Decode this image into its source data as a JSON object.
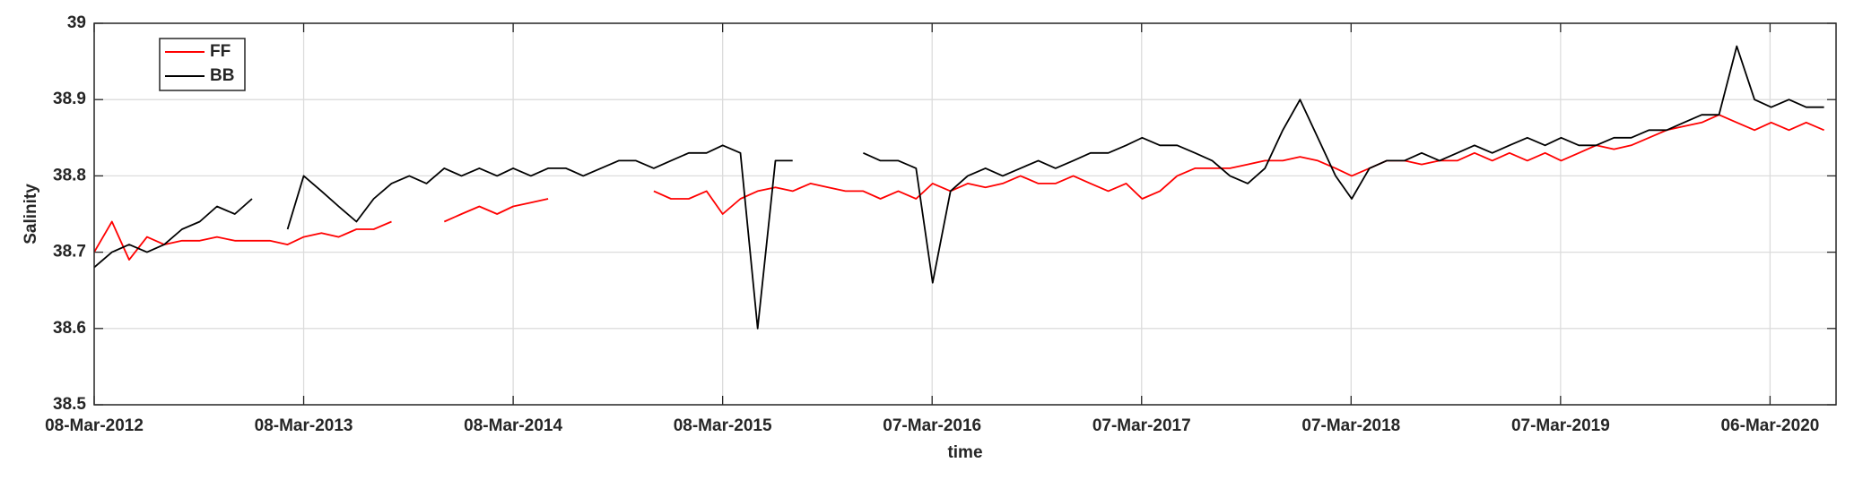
{
  "chart_data": {
    "type": "line",
    "xlabel": "time",
    "ylabel": "Salinity",
    "xlim": [
      "2012-03-08",
      "2020-06-29"
    ],
    "ylim": [
      38.5,
      39
    ],
    "xticks": [
      {
        "value": "2012-03-08",
        "label": "08-Mar-2012"
      },
      {
        "value": "2013-03-08",
        "label": "08-Mar-2013"
      },
      {
        "value": "2014-03-08",
        "label": "08-Mar-2014"
      },
      {
        "value": "2015-03-08",
        "label": "08-Mar-2015"
      },
      {
        "value": "2016-03-07",
        "label": "07-Mar-2016"
      },
      {
        "value": "2017-03-07",
        "label": "07-Mar-2017"
      },
      {
        "value": "2018-03-07",
        "label": "07-Mar-2018"
      },
      {
        "value": "2019-03-07",
        "label": "07-Mar-2019"
      },
      {
        "value": "2020-03-06",
        "label": "06-Mar-2020"
      }
    ],
    "yticks": [
      38.5,
      38.6,
      38.7,
      38.8,
      38.9,
      39
    ],
    "grid": true,
    "legend": "upper left",
    "x": [
      "2012-03-08",
      "2012-04-08",
      "2012-05-08",
      "2012-06-08",
      "2012-07-08",
      "2012-08-08",
      "2012-09-08",
      "2012-10-08",
      "2012-11-08",
      "2012-12-08",
      "2013-01-08",
      "2013-02-08",
      "2013-03-08",
      "2013-04-08",
      "2013-05-08",
      "2013-06-08",
      "2013-07-08",
      "2013-08-08",
      "2013-09-08",
      "2013-10-08",
      "2013-11-08",
      "2013-12-08",
      "2014-01-08",
      "2014-02-08",
      "2014-03-08",
      "2014-04-08",
      "2014-05-08",
      "2014-06-08",
      "2014-07-08",
      "2014-08-08",
      "2014-09-08",
      "2014-10-08",
      "2014-11-08",
      "2014-12-08",
      "2015-01-08",
      "2015-02-08",
      "2015-03-08",
      "2015-04-08",
      "2015-05-08",
      "2015-06-08",
      "2015-07-08",
      "2015-08-08",
      "2015-09-08",
      "2015-10-08",
      "2015-11-08",
      "2015-12-08",
      "2016-01-08",
      "2016-02-08",
      "2016-03-08",
      "2016-04-08",
      "2016-05-08",
      "2016-06-08",
      "2016-07-08",
      "2016-08-08",
      "2016-09-08",
      "2016-10-08",
      "2016-11-08",
      "2016-12-08",
      "2017-01-08",
      "2017-02-08",
      "2017-03-08",
      "2017-04-08",
      "2017-05-08",
      "2017-06-08",
      "2017-07-08",
      "2017-08-08",
      "2017-09-08",
      "2017-10-08",
      "2017-11-08",
      "2017-12-08",
      "2018-01-08",
      "2018-02-08",
      "2018-03-08",
      "2018-04-08",
      "2018-05-08",
      "2018-06-08",
      "2018-07-08",
      "2018-08-08",
      "2018-09-08",
      "2018-10-08",
      "2018-11-08",
      "2018-12-08",
      "2019-01-08",
      "2019-02-08",
      "2019-03-08",
      "2019-04-08",
      "2019-05-08",
      "2019-06-08",
      "2019-07-08",
      "2019-08-08",
      "2019-09-08",
      "2019-10-08",
      "2019-11-08",
      "2019-12-08",
      "2020-01-08",
      "2020-02-08",
      "2020-03-08",
      "2020-04-08",
      "2020-05-08",
      "2020-06-08"
    ],
    "series": [
      {
        "name": "FF",
        "color": "#ff0000",
        "values": [
          38.7,
          38.74,
          38.69,
          38.72,
          38.71,
          38.715,
          38.715,
          38.72,
          38.715,
          38.715,
          38.715,
          38.71,
          38.72,
          38.725,
          38.72,
          38.73,
          38.73,
          38.74,
          null,
          null,
          38.74,
          38.75,
          38.76,
          38.75,
          38.76,
          38.765,
          38.77,
          null,
          null,
          null,
          null,
          null,
          38.78,
          38.77,
          38.77,
          38.78,
          38.75,
          38.77,
          38.78,
          38.785,
          38.78,
          38.79,
          38.785,
          38.78,
          38.78,
          38.77,
          38.78,
          38.77,
          38.79,
          38.78,
          38.79,
          38.785,
          38.79,
          38.8,
          38.79,
          38.79,
          38.8,
          38.79,
          38.78,
          38.79,
          38.77,
          38.78,
          38.8,
          38.81,
          38.81,
          38.81,
          38.815,
          38.82,
          38.82,
          38.825,
          38.82,
          38.81,
          38.8,
          38.81,
          38.82,
          38.82,
          38.815,
          38.82,
          38.82,
          38.83,
          38.82,
          38.83,
          38.82,
          38.83,
          38.82,
          38.83,
          38.84,
          38.835,
          38.84,
          38.85,
          38.86,
          38.865,
          38.87,
          38.88,
          38.87,
          38.86,
          38.87,
          38.86,
          38.87,
          38.86
        ]
      },
      {
        "name": "BB",
        "color": "#000000",
        "values": [
          38.68,
          38.7,
          38.71,
          38.7,
          38.71,
          38.73,
          38.74,
          38.76,
          38.75,
          38.77,
          null,
          38.73,
          38.8,
          38.78,
          38.76,
          38.74,
          38.77,
          38.79,
          38.8,
          38.79,
          38.81,
          38.8,
          38.81,
          38.8,
          38.81,
          38.8,
          38.81,
          38.81,
          38.8,
          38.81,
          38.82,
          38.82,
          38.81,
          38.82,
          38.83,
          38.83,
          38.84,
          38.83,
          38.6,
          38.82,
          38.82,
          null,
          null,
          null,
          38.83,
          38.82,
          38.82,
          38.81,
          38.66,
          38.78,
          38.8,
          38.81,
          38.8,
          38.81,
          38.82,
          38.81,
          38.82,
          38.83,
          38.83,
          38.84,
          38.85,
          38.84,
          38.84,
          38.83,
          38.82,
          38.8,
          38.79,
          38.81,
          38.86,
          38.9,
          38.85,
          38.8,
          38.77,
          38.81,
          38.82,
          38.82,
          38.83,
          38.82,
          38.83,
          38.84,
          38.83,
          38.84,
          38.85,
          38.84,
          38.85,
          38.84,
          38.84,
          38.85,
          38.85,
          38.86,
          38.86,
          38.87,
          38.88,
          38.88,
          38.97,
          38.9,
          38.89,
          38.9,
          38.89,
          38.89
        ]
      }
    ]
  }
}
